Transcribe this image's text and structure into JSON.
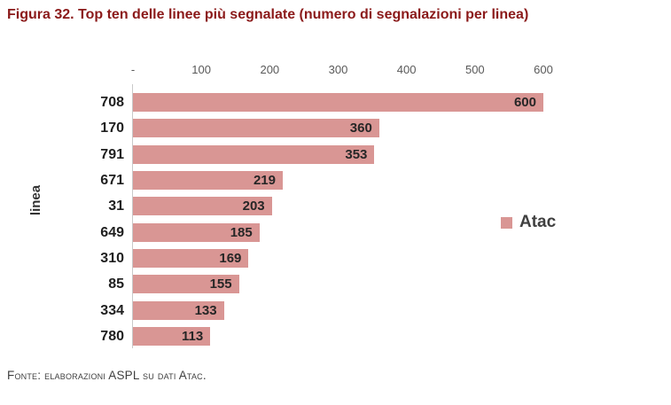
{
  "title": "Figura 32. Top ten delle linee più segnalate (numero di segnalazioni per linea)",
  "footer": "Fonte: elaborazioni ASPL su dati Atac.",
  "colors": {
    "title": "#8B1A1A",
    "bar": "#D99694",
    "axis_line": "#C9C9C9",
    "tick_label": "#595959",
    "value_label": "#262626",
    "category_label": "#1F1F1F",
    "legend_label": "#404040"
  },
  "chart_data": {
    "type": "bar",
    "orientation": "horizontal",
    "title": "Figura 32. Top ten delle linee più segnalate (numero di segnalazioni per linea)",
    "categories": [
      "708",
      "170",
      "791",
      "671",
      "31",
      "649",
      "310",
      "85",
      "334",
      "780"
    ],
    "values": [
      600,
      360,
      353,
      219,
      203,
      185,
      169,
      155,
      133,
      113
    ],
    "series": [
      {
        "name": "Atac",
        "values": [
          600,
          360,
          353,
          219,
          203,
          185,
          169,
          155,
          133,
          113
        ]
      }
    ],
    "xlabel": "",
    "ylabel": "linea",
    "xlim": [
      0,
      600
    ],
    "xticks": [
      "-",
      "100",
      "200",
      "300",
      "400",
      "500",
      "600"
    ],
    "xtick_values": [
      0,
      100,
      200,
      300,
      400,
      500,
      600
    ],
    "grid": false,
    "value_labels": "inside-end",
    "legend": {
      "label": "Atac",
      "position": "right"
    }
  }
}
